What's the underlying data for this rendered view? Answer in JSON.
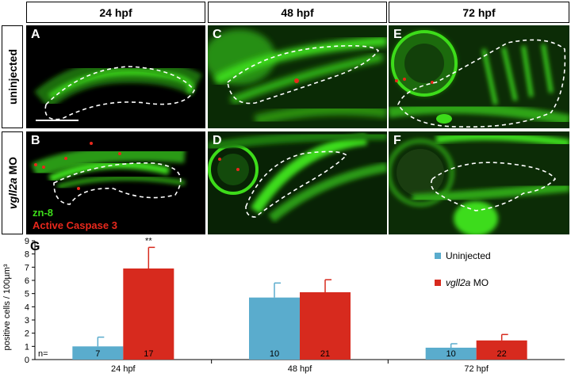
{
  "columns": [
    "24 hpf",
    "48 hpf",
    "72 hpf"
  ],
  "rows": {
    "uninjected": "uninjected",
    "morphant_gene": "vgll2a",
    "morphant_suffix": " MO"
  },
  "panels": [
    "A",
    "B",
    "C",
    "D",
    "E",
    "F"
  ],
  "stain_legend": {
    "green": "zn-8",
    "red": "Active Caspase 3"
  },
  "colors": {
    "green_stain": "#3ddc1a",
    "red_stain": "#e8281c",
    "uninjected_bar": "#5aaccd",
    "morphant_bar": "#d72a1e"
  },
  "chart_data": {
    "type": "bar",
    "panel_label": "G",
    "categories": [
      "24 hpf",
      "48 hpf",
      "72 hpf"
    ],
    "ylabel": "positive cells / 100µm³",
    "ylim": [
      0,
      9
    ],
    "yticks": [
      "0",
      "1",
      "2",
      "3",
      "4",
      "5",
      "6",
      "7",
      "8",
      "9"
    ],
    "n_prefix": "n=",
    "series": [
      {
        "name": "Uninjected",
        "values": [
          1.0,
          4.7,
          0.9
        ],
        "errors": [
          0.7,
          1.1,
          0.3
        ],
        "n": [
          "7",
          "10",
          "10"
        ]
      },
      {
        "name_italic": "vgll2a",
        "name_suffix": " MO",
        "values": [
          6.9,
          5.1,
          1.45
        ],
        "errors": [
          1.6,
          0.95,
          0.45
        ],
        "n": [
          "17",
          "21",
          "22"
        ]
      }
    ],
    "significance": [
      {
        "category": "24 hpf",
        "series": 1,
        "label": "**"
      }
    ]
  }
}
